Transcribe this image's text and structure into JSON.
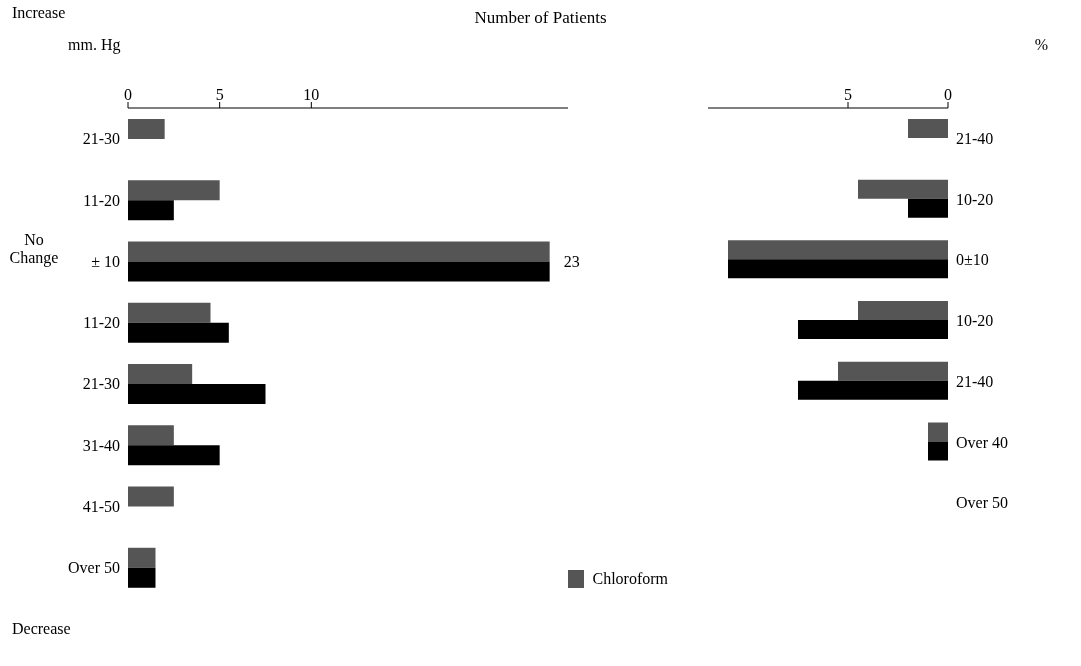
{
  "chart_data": [
    {
      "type": "bar",
      "orientation": "horizontal",
      "title": "Number of Patients",
      "ylabel": "mm. Hg",
      "categories": [
        "21-30",
        "11-20",
        "± 10",
        "11-20",
        "21-30",
        "31-40",
        "41-50",
        "Over 50"
      ],
      "series": [
        {
          "name": "Chloroform",
          "color": "#555555",
          "values": [
            2,
            5,
            23,
            4.5,
            3.5,
            2.5,
            2.5,
            1.5
          ]
        },
        {
          "color": "#000000",
          "values": [
            null,
            2.5,
            23,
            5.5,
            7.5,
            5,
            null,
            1.5
          ]
        }
      ],
      "xlim": [
        0,
        24
      ],
      "xticks": [
        0,
        5,
        10
      ],
      "legend": "bottom right",
      "annotations": [
        "Increase",
        "Decrease",
        "No Change",
        {
          "text": "23",
          "x": 23,
          "y": "± 10"
        }
      ]
    },
    {
      "type": "bar",
      "orientation": "horizontal",
      "ylabel": "%",
      "categories": [
        "21-40",
        "10-20",
        "0±10",
        "10-20",
        "21-40",
        "Over 40",
        "Over 50"
      ],
      "series": [
        {
          "color": "#555555",
          "values": [
            2,
            4.5,
            11,
            4.5,
            5.5,
            1,
            null
          ]
        },
        {
          "color": "#000000",
          "values": [
            null,
            2,
            11,
            7.5,
            7.5,
            1,
            null
          ]
        }
      ],
      "xlim": [
        12,
        0
      ],
      "xticks": [
        5,
        0
      ]
    }
  ]
}
